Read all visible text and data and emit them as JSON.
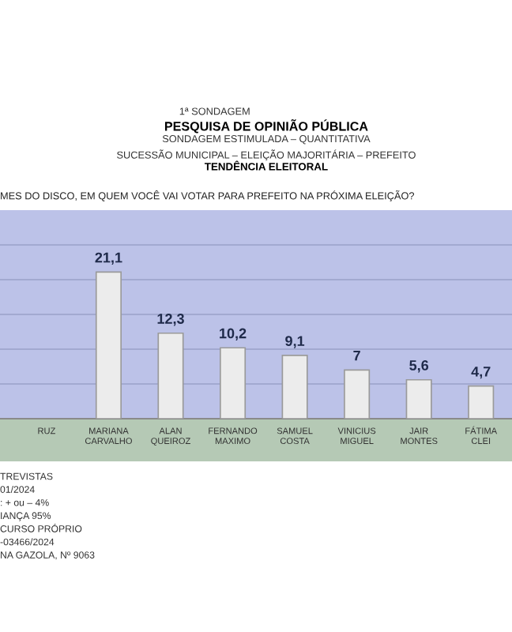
{
  "chart_data": {
    "type": "bar",
    "title": "PESQUISA DE OPINIÃO PÚBLICA",
    "subtitle": "SONDAGEM ESTIMULADA – QUANTITATIVA\nSUCESSÃO MUNICIPAL – ELEIÇÃO MAJORITÁRIA – PREFEITO",
    "annotations": [
      "1ª SONDAGEM",
      "TENDÊNCIA ELEITORAL",
      "MES DO DISCO, EM QUEM VOCÊ VAI VOTAR PARA PREFEITO NA PRÓXIMA ELEIÇÃO?",
      "TREVISTAS",
      "01/2024",
      ": + ou – 4%",
      "IANÇA 95%",
      "CURSO PRÓPRIO",
      "-03466/2024",
      "NA GAZOLA, Nº 9063"
    ],
    "categories": [
      "RUZ",
      "MARIANA\nCARVALHO",
      "ALAN QUEIROZ",
      "FERNANDO\nMAXIMO",
      "SAMUEL COSTA",
      "VINICIUS MIGUEL",
      "JAIR MONTES",
      "FÁTIMA CLEI"
    ],
    "values": [
      null,
      21.1,
      12.3,
      10.2,
      9.1,
      7,
      5.6,
      4.7
    ],
    "value_labels": [
      null,
      "21,1",
      "12,3",
      "10,2",
      "9,1",
      "7",
      "5,6",
      "4,7"
    ],
    "color": "#ececec",
    "ylim": [
      0,
      30
    ],
    "yticks": [
      {
        "value": 5,
        "label": null
      },
      {
        "value": 10,
        "label": null
      },
      {
        "value": 15,
        "label": null
      },
      {
        "value": 20,
        "label": null
      },
      {
        "value": 25,
        "label": null
      }
    ],
    "grid": "y",
    "tick_labels": "x"
  }
}
